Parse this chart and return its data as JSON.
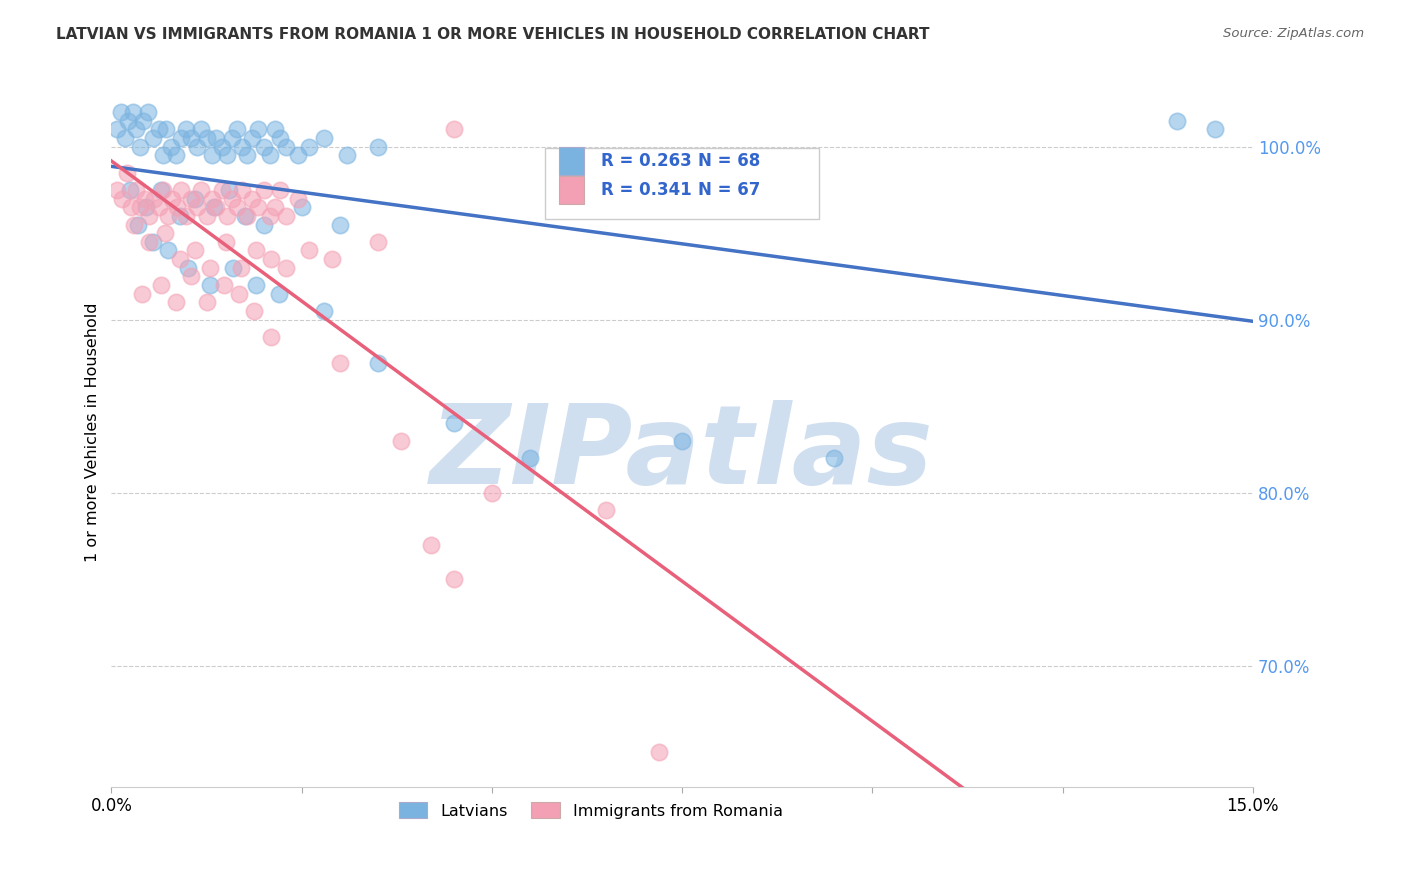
{
  "title": "LATVIAN VS IMMIGRANTS FROM ROMANIA 1 OR MORE VEHICLES IN HOUSEHOLD CORRELATION CHART",
  "source": "Source: ZipAtlas.com",
  "ylabel": "1 or more Vehicles in Household",
  "legend_label1": "Latvians",
  "legend_label2": "Immigrants from Romania",
  "legend_r1": "R = 0.263",
  "legend_n1": "N = 68",
  "legend_r2": "R = 0.341",
  "legend_n2": "N = 67",
  "color_latvian": "#7ab3e0",
  "color_romania": "#f4a0b4",
  "color_line_latvian": "#4472c4",
  "color_line_romania": "#e8607a",
  "watermark": "ZIPatlas",
  "watermark_color": "#d0dff0",
  "xmin": 0.0,
  "xmax": 15.0,
  "ymin": 63.0,
  "ymax": 104.0,
  "ytick_vals": [
    70.0,
    80.0,
    90.0,
    100.0
  ],
  "ytick_labels": [
    "70.0%",
    "80.0%",
    "90.0%",
    "100.0%"
  ],
  "latvian_x": [
    0.08,
    0.12,
    0.18,
    0.22,
    0.28,
    0.32,
    0.38,
    0.42,
    0.48,
    0.55,
    0.62,
    0.68,
    0.72,
    0.78,
    0.85,
    0.92,
    0.98,
    1.05,
    1.12,
    1.18,
    1.25,
    1.32,
    1.38,
    1.45,
    1.52,
    1.58,
    1.65,
    1.72,
    1.78,
    1.85,
    1.92,
    2.0,
    2.08,
    2.15,
    2.22,
    2.3,
    2.45,
    2.6,
    2.8,
    3.1,
    3.5,
    0.25,
    0.45,
    0.65,
    0.9,
    1.1,
    1.35,
    1.55,
    1.75,
    2.0,
    2.5,
    3.0,
    0.35,
    0.55,
    0.75,
    1.0,
    1.3,
    1.6,
    1.9,
    2.2,
    2.8,
    3.5,
    4.5,
    5.5,
    7.5,
    14.0,
    9.5,
    14.5
  ],
  "latvian_y": [
    101.0,
    102.0,
    100.5,
    101.5,
    102.0,
    101.0,
    100.0,
    101.5,
    102.0,
    100.5,
    101.0,
    99.5,
    101.0,
    100.0,
    99.5,
    100.5,
    101.0,
    100.5,
    100.0,
    101.0,
    100.5,
    99.5,
    100.5,
    100.0,
    99.5,
    100.5,
    101.0,
    100.0,
    99.5,
    100.5,
    101.0,
    100.0,
    99.5,
    101.0,
    100.5,
    100.0,
    99.5,
    100.0,
    100.5,
    99.5,
    100.0,
    97.5,
    96.5,
    97.5,
    96.0,
    97.0,
    96.5,
    97.5,
    96.0,
    95.5,
    96.5,
    95.5,
    95.5,
    94.5,
    94.0,
    93.0,
    92.0,
    93.0,
    92.0,
    91.5,
    90.5,
    87.5,
    84.0,
    82.0,
    83.0,
    101.5,
    82.0,
    101.0
  ],
  "romania_x": [
    0.08,
    0.14,
    0.2,
    0.26,
    0.32,
    0.38,
    0.44,
    0.5,
    0.56,
    0.62,
    0.68,
    0.74,
    0.8,
    0.86,
    0.92,
    0.98,
    1.05,
    1.12,
    1.18,
    1.25,
    1.32,
    1.38,
    1.45,
    1.52,
    1.58,
    1.65,
    1.72,
    1.78,
    1.85,
    1.92,
    2.0,
    2.08,
    2.15,
    2.22,
    2.3,
    2.45,
    0.3,
    0.5,
    0.7,
    0.9,
    1.1,
    1.3,
    1.5,
    1.7,
    1.9,
    2.1,
    2.3,
    2.6,
    2.9,
    3.5,
    4.5,
    0.4,
    0.65,
    0.85,
    1.05,
    1.25,
    1.48,
    1.68,
    1.88,
    2.1,
    3.0,
    3.8,
    5.0,
    6.5,
    4.5,
    4.2,
    7.2
  ],
  "romania_y": [
    97.5,
    97.0,
    98.5,
    96.5,
    97.5,
    96.5,
    97.0,
    96.0,
    97.0,
    96.5,
    97.5,
    96.0,
    97.0,
    96.5,
    97.5,
    96.0,
    97.0,
    96.5,
    97.5,
    96.0,
    97.0,
    96.5,
    97.5,
    96.0,
    97.0,
    96.5,
    97.5,
    96.0,
    97.0,
    96.5,
    97.5,
    96.0,
    96.5,
    97.5,
    96.0,
    97.0,
    95.5,
    94.5,
    95.0,
    93.5,
    94.0,
    93.0,
    94.5,
    93.0,
    94.0,
    93.5,
    93.0,
    94.0,
    93.5,
    94.5,
    101.0,
    91.5,
    92.0,
    91.0,
    92.5,
    91.0,
    92.0,
    91.5,
    90.5,
    89.0,
    87.5,
    83.0,
    80.0,
    79.0,
    75.0,
    77.0,
    65.0
  ]
}
